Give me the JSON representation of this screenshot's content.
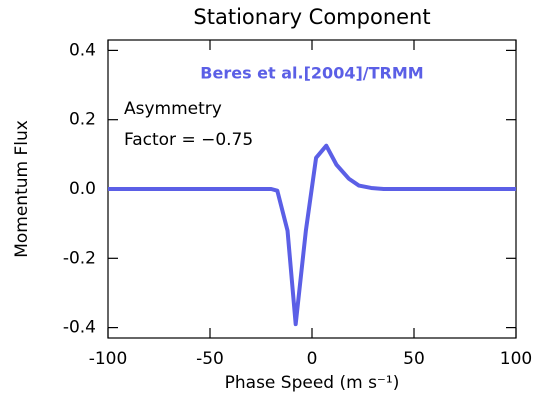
{
  "chart_data": {
    "type": "line",
    "title": "Stationary Component",
    "xlabel": "Phase Speed (m s⁻¹)",
    "ylabel": "Momentum Flux",
    "annotations": [
      "Beres et al.[2004]/TRMM",
      "Asymmetry",
      "Factor = −0.75"
    ],
    "x": [
      -100,
      -20,
      -17,
      -12,
      -8,
      -3,
      2,
      7,
      12,
      18,
      23,
      29,
      35,
      100
    ],
    "series": [
      {
        "name": "Beres et al.[2004]/TRMM",
        "color": "#5b5fe6",
        "values": [
          0,
          0,
          -0.005,
          -0.12,
          -0.39,
          -0.12,
          0.09,
          0.125,
          0.07,
          0.03,
          0.01,
          0.003,
          0,
          0
        ]
      }
    ],
    "xlim": [
      -100,
      100
    ],
    "ylim": [
      -0.43,
      0.43
    ],
    "xticks": [
      -100,
      -50,
      0,
      50,
      100
    ],
    "yticks": [
      -0.4,
      -0.2,
      {
        "value": 0,
        "label": "0.0"
      },
      0.2,
      0.4
    ]
  }
}
